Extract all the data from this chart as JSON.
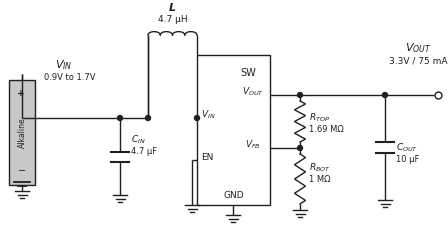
{
  "background_color": "#ffffff",
  "line_color": "#231f20",
  "figsize": [
    4.48,
    2.45
  ],
  "dpi": 100,
  "labels": {
    "L": "L",
    "L_val": "4.7 μH",
    "VIN_label": "V",
    "VIN_sub": "IN",
    "VIN_range": "0.9V to 1.7V",
    "CIN_label": "C",
    "CIN_sub": "IN",
    "CIN_val": "4.7 μF",
    "SW": "SW",
    "VIN_pin": "V",
    "VIN_pin_sub": "IN",
    "EN_pin": "EN",
    "GND_pin": "GND",
    "VOUT_pin": "V",
    "VOUT_pin_sub": "OUT",
    "VFB_pin": "V",
    "VFB_pin_sub": "FB",
    "VOUT_top": "V",
    "VOUT_top_sub": "OUT",
    "VOUT_val": "3.3V / 75 mA",
    "RTOP": "R",
    "RTOP_sub": "TOP",
    "RTOP_val": "1.69 MΩ",
    "RBOT": "R",
    "RBOT_sub": "BOT",
    "RBOT_val": "1 MΩ",
    "COUT": "C",
    "COUT_sub": "OUT",
    "COUT_val": "10 μF",
    "Alkaline": "Alkaline"
  }
}
